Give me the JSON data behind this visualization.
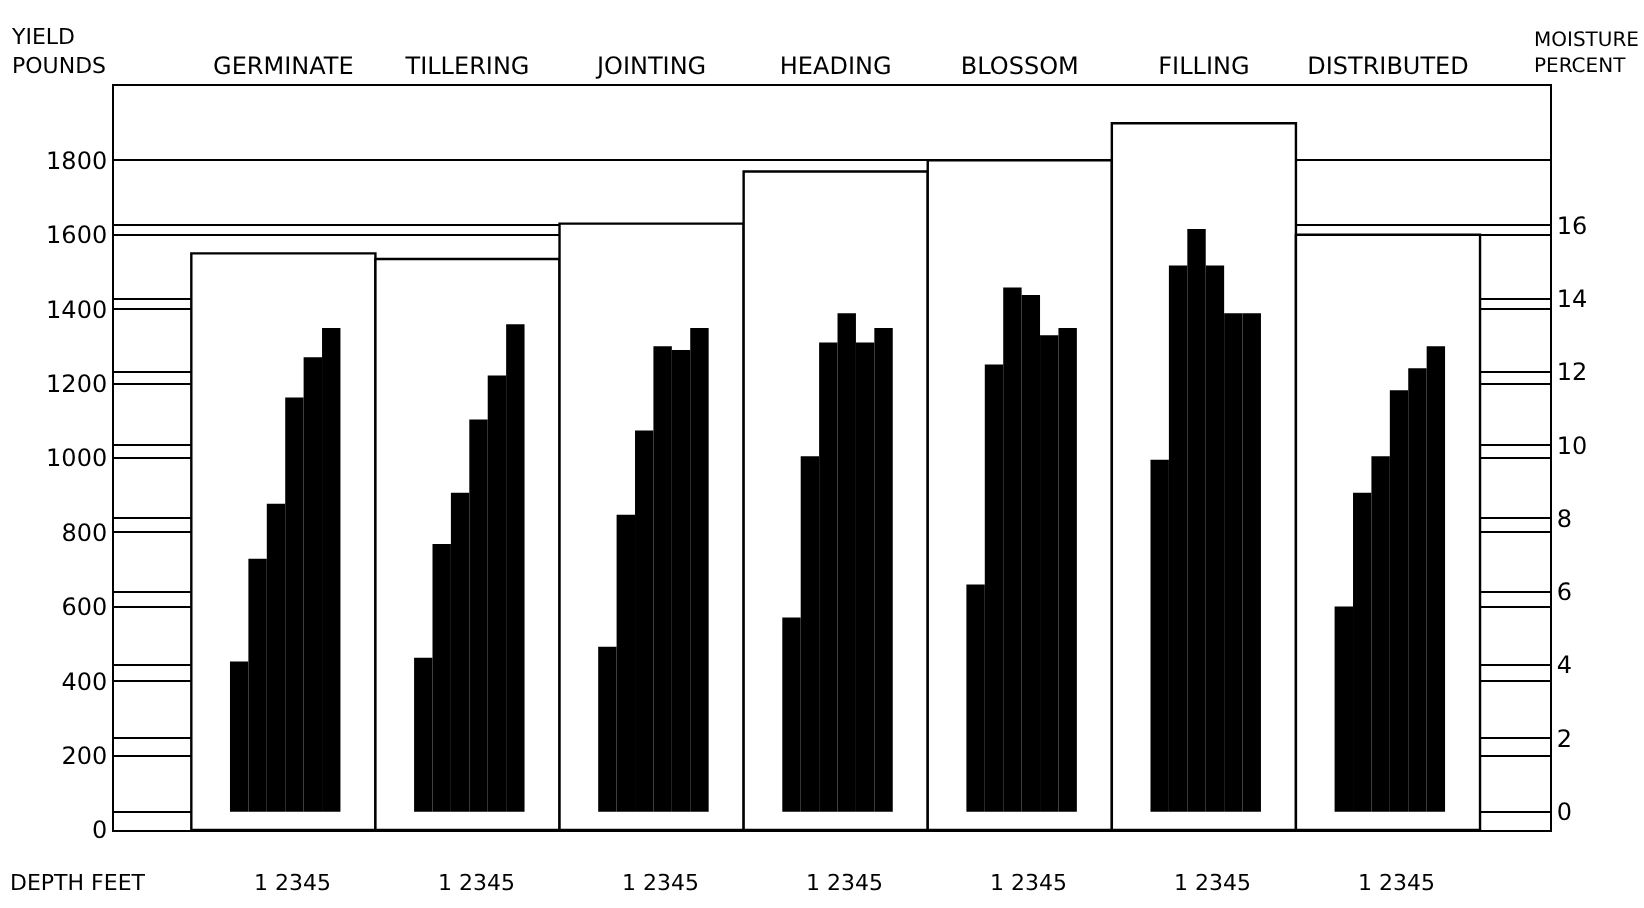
{
  "chart_data": {
    "type": "bar",
    "categories": [
      "GERMINATE",
      "TILLERING",
      "JOINTING",
      "HEADING",
      "BLOSSOM",
      "FILLING",
      "DISTRIBUTED"
    ],
    "ylabel": "YIELD\nPOUNDS",
    "y2label": "MOISTURE\nPERCENT",
    "series": [
      {
        "color": "#000000",
        "axis": "y2",
        "values": [
          4.1,
          4.2,
          4.5,
          5.3,
          6.2,
          9.6,
          5.6
        ]
      },
      {
        "color": "#000000",
        "axis": "y2",
        "values": [
          6.9,
          7.3,
          8.1,
          9.7,
          12.2,
          14.9,
          8.7
        ]
      },
      {
        "color": "#000000",
        "axis": "y2",
        "values": [
          8.4,
          8.7,
          10.4,
          12.8,
          14.3,
          15.9,
          9.7
        ]
      },
      {
        "color": "#ffffff",
        "values": [
          1550,
          1535,
          1630,
          1770,
          1800,
          1900,
          1600
        ]
      },
      {
        "color": "#000000",
        "axis": "y2",
        "values": [
          11.3,
          10.7,
          12.7,
          13.6,
          14.1,
          14.9,
          11.5
        ]
      },
      {
        "color": "#000000",
        "axis": "y2",
        "values": [
          12.4,
          11.9,
          12.6,
          12.8,
          13.0,
          13.6,
          12.1
        ]
      },
      {
        "color": "#000000",
        "axis": "y2",
        "values": [
          13.2,
          13.3,
          13.2,
          13.2,
          13.2,
          13.6,
          12.7
        ]
      }
    ],
    "ylim": [
      0,
      2000
    ],
    "yticks": [
      0,
      200,
      400,
      600,
      800,
      1000,
      1200,
      1400,
      1600,
      1800
    ],
    "y2lim": [
      -0.5,
      19.8
    ],
    "y2ticks": [
      0,
      2,
      4,
      6,
      8,
      10,
      12,
      14,
      16
    ],
    "grid": "y",
    "annotations": [
      "DEPTH FEET",
      "1 2345",
      "1 2345",
      "1 2345",
      "1 2345",
      "1 2345",
      "1 2345",
      "1 2345"
    ]
  }
}
